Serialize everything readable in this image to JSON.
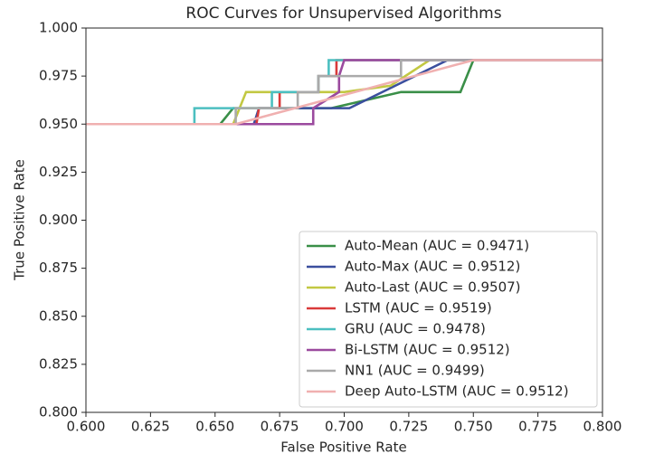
{
  "chart_data": {
    "type": "line",
    "title": "ROC Curves for Unsupervised Algorithms",
    "xlabel": "False Positive Rate",
    "ylabel": "True Positive Rate",
    "xlim": [
      0.6,
      0.8
    ],
    "ylim": [
      0.8,
      1.0
    ],
    "xticks": [
      {
        "value": 0.6,
        "label": "0.600"
      },
      {
        "value": 0.625,
        "label": "0.625"
      },
      {
        "value": 0.65,
        "label": "0.650"
      },
      {
        "value": 0.675,
        "label": "0.675"
      },
      {
        "value": 0.7,
        "label": "0.700"
      },
      {
        "value": 0.725,
        "label": "0.725"
      },
      {
        "value": 0.75,
        "label": "0.750"
      },
      {
        "value": 0.775,
        "label": "0.775"
      },
      {
        "value": 0.8,
        "label": "0.800"
      }
    ],
    "yticks": [
      {
        "value": 0.8,
        "label": "0.800"
      },
      {
        "value": 0.825,
        "label": "0.825"
      },
      {
        "value": 0.85,
        "label": "0.850"
      },
      {
        "value": 0.875,
        "label": "0.875"
      },
      {
        "value": 0.9,
        "label": "0.900"
      },
      {
        "value": 0.925,
        "label": "0.925"
      },
      {
        "value": 0.95,
        "label": "0.950"
      },
      {
        "value": 0.975,
        "label": "0.975"
      },
      {
        "value": 1.0,
        "label": "1.000"
      }
    ],
    "legend": "lower right",
    "series": [
      {
        "name": "Auto-Mean (AUC = 0.9471)",
        "color": "#3a8f48",
        "x": [
          0.6,
          0.652,
          0.657,
          0.695,
          0.722,
          0.745,
          0.75,
          0.8
        ],
        "values": [
          0.95,
          0.95,
          0.9583,
          0.9583,
          0.9667,
          0.9667,
          0.9833,
          0.9833
        ]
      },
      {
        "name": "Auto-Max (AUC = 0.9512)",
        "color": "#3b4f9e",
        "x": [
          0.6,
          0.665,
          0.667,
          0.702,
          0.74,
          0.8
        ],
        "values": [
          0.95,
          0.95,
          0.9583,
          0.9583,
          0.9833,
          0.9833
        ]
      },
      {
        "name": "Auto-Last (AUC = 0.9507)",
        "color": "#c2c842",
        "x": [
          0.6,
          0.657,
          0.662,
          0.7,
          0.718,
          0.733,
          0.8
        ],
        "values": [
          0.95,
          0.95,
          0.9667,
          0.9667,
          0.97,
          0.9833,
          0.9833
        ]
      },
      {
        "name": "LSTM (AUC = 0.9519)",
        "color": "#d93a3a",
        "x": [
          0.6,
          0.666,
          0.667,
          0.675,
          0.675,
          0.69,
          0.69,
          0.697,
          0.697,
          0.8
        ],
        "values": [
          0.95,
          0.95,
          0.9583,
          0.9583,
          0.9667,
          0.9667,
          0.975,
          0.975,
          0.9833,
          0.9833
        ]
      },
      {
        "name": "GRU (AUC = 0.9478)",
        "color": "#4cbfc0",
        "x": [
          0.6,
          0.642,
          0.642,
          0.672,
          0.672,
          0.69,
          0.69,
          0.694,
          0.694,
          0.8
        ],
        "values": [
          0.95,
          0.95,
          0.9583,
          0.9583,
          0.9667,
          0.9667,
          0.975,
          0.975,
          0.9833,
          0.9833
        ]
      },
      {
        "name": "Bi-LSTM (AUC = 0.9512)",
        "color": "#9b4a9e",
        "x": [
          0.6,
          0.688,
          0.688,
          0.698,
          0.698,
          0.7,
          0.8
        ],
        "values": [
          0.95,
          0.95,
          0.9583,
          0.9667,
          0.975,
          0.9833,
          0.9833
        ]
      },
      {
        "name": "NN1 (AUC = 0.9499)",
        "color": "#aaaaaa",
        "x": [
          0.6,
          0.658,
          0.658,
          0.682,
          0.682,
          0.69,
          0.69,
          0.722,
          0.722,
          0.8
        ],
        "values": [
          0.95,
          0.95,
          0.9583,
          0.9583,
          0.9667,
          0.9667,
          0.975,
          0.975,
          0.9833,
          0.9833
        ]
      },
      {
        "name": "Deep Auto-LSTM (AUC = 0.9512)",
        "color": "#f0b0b0",
        "x": [
          0.6,
          0.658,
          0.75,
          0.8
        ],
        "values": [
          0.95,
          0.95,
          0.9833,
          0.9833
        ]
      }
    ]
  }
}
